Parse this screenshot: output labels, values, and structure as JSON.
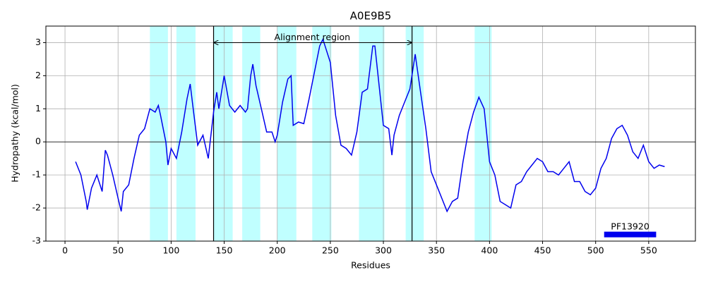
{
  "chart_data": {
    "type": "line",
    "title": "A0E9B5",
    "x_label": "Residues",
    "y_label": "Hydropathy (kcal/mol)",
    "xlim": [
      -18,
      594
    ],
    "ylim": [
      -3,
      3.5
    ],
    "xticks": [
      0,
      50,
      100,
      150,
      200,
      250,
      300,
      350,
      400,
      450,
      500,
      550
    ],
    "yticks": [
      -3,
      -2,
      -1,
      0,
      1,
      2,
      3
    ],
    "grid": true,
    "color": "#0000ee",
    "x": [
      10,
      15,
      20,
      21,
      25,
      30,
      35,
      38,
      40,
      45,
      50,
      53,
      55,
      60,
      65,
      70,
      75,
      80,
      85,
      88,
      90,
      95,
      97,
      100,
      105,
      110,
      115,
      118,
      120,
      125,
      130,
      135,
      140,
      143,
      145,
      150,
      155,
      160,
      165,
      170,
      172,
      175,
      177,
      180,
      185,
      190,
      195,
      198,
      200,
      205,
      210,
      213,
      215,
      220,
      225,
      230,
      235,
      240,
      243,
      245,
      250,
      255,
      260,
      265,
      270,
      275,
      280,
      285,
      290,
      292,
      295,
      300,
      305,
      308,
      310,
      315,
      320,
      325,
      330,
      335,
      340,
      345,
      350,
      355,
      360,
      365,
      370,
      375,
      380,
      385,
      390,
      395,
      400,
      405,
      410,
      415,
      420,
      425,
      430,
      435,
      440,
      445,
      450,
      455,
      460,
      465,
      470,
      475,
      480,
      485,
      490,
      495,
      500,
      505,
      510,
      515,
      520,
      525,
      530,
      535,
      540,
      545,
      550,
      555,
      560,
      565
    ],
    "values": [
      -0.6,
      -1.0,
      -1.8,
      -2.05,
      -1.4,
      -1.0,
      -1.5,
      -0.25,
      -0.4,
      -1.0,
      -1.7,
      -2.1,
      -1.5,
      -1.3,
      -0.5,
      0.2,
      0.4,
      1.0,
      0.9,
      1.1,
      0.8,
      0.0,
      -0.7,
      -0.2,
      -0.5,
      0.3,
      1.3,
      1.75,
      1.2,
      -0.1,
      0.2,
      -0.5,
      0.9,
      1.5,
      1.0,
      2.0,
      1.1,
      0.9,
      1.1,
      0.9,
      1.0,
      2.0,
      2.35,
      1.7,
      1.0,
      0.3,
      0.3,
      0.0,
      0.2,
      1.2,
      1.9,
      2.0,
      0.5,
      0.6,
      0.55,
      1.3,
      2.1,
      2.9,
      3.1,
      2.9,
      2.4,
      0.8,
      -0.1,
      -0.2,
      -0.4,
      0.3,
      1.5,
      1.6,
      2.9,
      2.9,
      2.0,
      0.5,
      0.4,
      -0.4,
      0.2,
      0.8,
      1.2,
      1.6,
      2.65,
      1.5,
      0.4,
      -0.9,
      -1.3,
      -1.7,
      -2.1,
      -1.8,
      -1.7,
      -0.6,
      0.3,
      0.9,
      1.35,
      1.0,
      -0.6,
      -1.0,
      -1.8,
      -1.9,
      -2.0,
      -1.3,
      -1.2,
      -0.9,
      -0.7,
      -0.5,
      -0.6,
      -0.9,
      -0.9,
      -1.0,
      -0.8,
      -0.6,
      -1.2,
      -1.2,
      -1.5,
      -1.6,
      -1.4,
      -0.8,
      -0.5,
      0.1,
      0.4,
      0.5,
      0.2,
      -0.3,
      -0.5,
      -0.1,
      -0.6,
      -0.8,
      -0.7,
      -0.75
    ],
    "span_color": "#c0ffff",
    "spans": [
      [
        80,
        97
      ],
      [
        105,
        123
      ],
      [
        140,
        158
      ],
      [
        167,
        184
      ],
      [
        200,
        218
      ],
      [
        233,
        251
      ],
      [
        277,
        301
      ],
      [
        321,
        338
      ],
      [
        386,
        402
      ]
    ],
    "vlines": [
      140,
      327
    ],
    "hline": 0,
    "annotation": {
      "text": "Alignment region",
      "x": 233,
      "y": 3.15,
      "arrow_from": 140,
      "arrow_to": 327,
      "arrow_y": 3
    },
    "domains": [
      {
        "label": "PF13920",
        "start": 508,
        "end": 557,
        "y": -2.8,
        "label_y": -2.57,
        "color": "#0000ee"
      }
    ]
  }
}
